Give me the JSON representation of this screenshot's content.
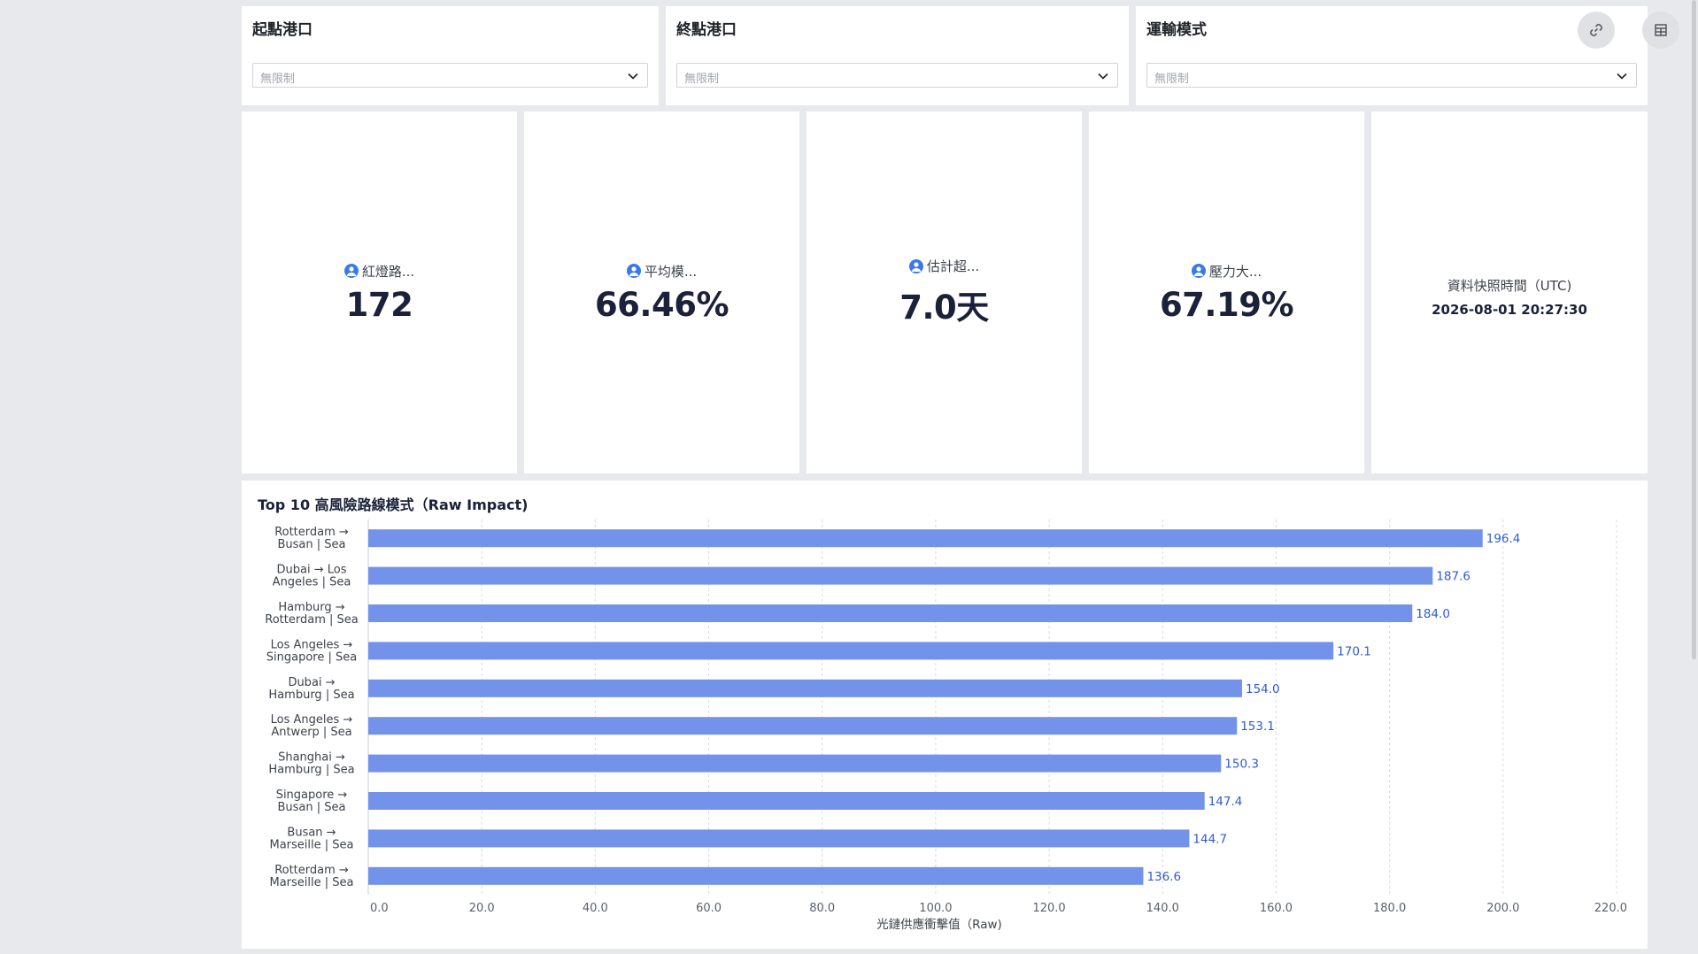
{
  "filters": [
    {
      "title": "起點港口",
      "placeholder": "無限制"
    },
    {
      "title": "終點港口",
      "placeholder": "無限制"
    },
    {
      "title": "運輸模式",
      "placeholder": "無限制"
    }
  ],
  "toolbar": {
    "link_icon": "link-icon",
    "layout_icon": "grid-layout-icon"
  },
  "kpis": [
    {
      "label": "紅燈路...",
      "value": "172",
      "icon": "user-circle-icon"
    },
    {
      "label": "平均模...",
      "value": "66.46%",
      "icon": "user-circle-icon"
    },
    {
      "label": "估計超...",
      "value": "7.0天",
      "icon": "user-circle-icon"
    },
    {
      "label": "壓力大...",
      "value": "67.19%",
      "icon": "user-circle-icon"
    }
  ],
  "snapshot": {
    "label": "資料快照時間（UTC)",
    "value": "2026-08-01 20:27:30"
  },
  "chart": {
    "title": "Top 10 高風險路線模式（Raw Impact)"
  },
  "chart_data": {
    "type": "bar",
    "orientation": "horizontal",
    "title": "Top 10 高風險路線模式（Raw Impact)",
    "xlabel": "光鏈供應衝擊值（Raw)",
    "ylabel": "",
    "xlim": [
      0,
      220
    ],
    "xticks": [
      "0.0",
      "20.0",
      "40.0",
      "60.0",
      "80.0",
      "100.0",
      "120.0",
      "140.0",
      "160.0",
      "180.0",
      "200.0",
      "220.0"
    ],
    "categories": [
      [
        "Rotterdam →",
        "Busan | Sea"
      ],
      [
        "Dubai → Los",
        "Angeles | Sea"
      ],
      [
        "Hamburg →",
        "Rotterdam | Sea"
      ],
      [
        "Los Angeles →",
        "Singapore | Sea"
      ],
      [
        "Dubai →",
        "Hamburg | Sea"
      ],
      [
        "Los Angeles →",
        "Antwerp | Sea"
      ],
      [
        "Shanghai →",
        "Hamburg | Sea"
      ],
      [
        "Singapore →",
        "Busan | Sea"
      ],
      [
        "Busan →",
        "Marseille | Sea"
      ],
      [
        "Rotterdam →",
        "Marseille | Sea"
      ]
    ],
    "values": [
      196.4,
      187.6,
      184.0,
      170.1,
      154.0,
      153.1,
      150.3,
      147.4,
      144.7,
      136.6
    ],
    "labels": [
      "196.4",
      "187.6",
      "184.0",
      "170.1",
      "154.0",
      "153.1",
      "150.3",
      "147.4",
      "144.7",
      "136.6"
    ],
    "bar_color": "#7393ea",
    "label_color": "#2d5bd7",
    "grid": true
  }
}
